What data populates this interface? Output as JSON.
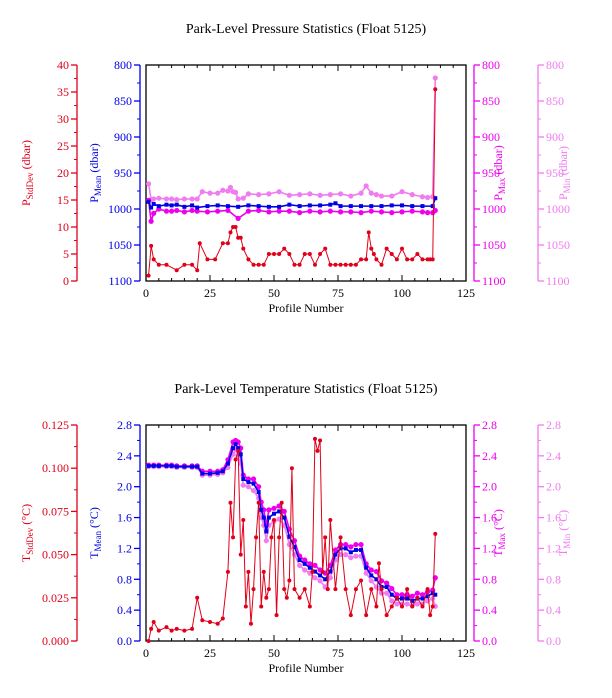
{
  "colors": {
    "stddev": "#e0001a",
    "mean": "#0000e6",
    "max": "#ee00ee",
    "min": "#f07cf0",
    "axis": "#000000"
  },
  "chart_data": [
    {
      "type": "line",
      "title": "Park-Level Pressure Statistics (Float 5125)",
      "xlabel": "Profile Number",
      "xlim": [
        0,
        125
      ],
      "x_ticks": [
        "0",
        "25",
        "50",
        "75",
        "100",
        "125"
      ],
      "axes": {
        "stddev": {
          "label_main": "P",
          "label_sub": "StdDev",
          "label_unit": " (dbar)",
          "lim": [
            0,
            40
          ],
          "ticks": [
            "0",
            "5",
            "10",
            "15",
            "20",
            "25",
            "30",
            "35",
            "40"
          ]
        },
        "mean": {
          "label_main": "P",
          "label_sub": "Mean",
          "label_unit": " (dbar)",
          "lim": [
            1100,
            800
          ],
          "ticks": [
            "1100",
            "1050",
            "1000",
            "950",
            "900",
            "850",
            "800"
          ]
        },
        "max": {
          "label_main": "P",
          "label_sub": "Max",
          "label_unit": " (dbar)",
          "lim": [
            1100,
            800
          ],
          "ticks": [
            "1100",
            "1050",
            "1000",
            "950",
            "900",
            "850",
            "800"
          ]
        },
        "min": {
          "label_main": "P",
          "label_sub": "Min",
          "label_unit": " (dbar)",
          "lim": [
            1100,
            800
          ],
          "ticks": [
            "1100",
            "1050",
            "1000",
            "950",
            "900",
            "850",
            "800"
          ]
        }
      },
      "series": [
        {
          "key": "stddev",
          "x": [
            1,
            2,
            3,
            5,
            8,
            12,
            15,
            18,
            20,
            21,
            24,
            27,
            30,
            32,
            33,
            34,
            35,
            36,
            37,
            38,
            40,
            42,
            44,
            46,
            48,
            50,
            52,
            54,
            56,
            58,
            60,
            62,
            64,
            66,
            68,
            70,
            72,
            74,
            76,
            78,
            80,
            82,
            84,
            86,
            87,
            88,
            89,
            90,
            92,
            94,
            96,
            98,
            100,
            102,
            104,
            106,
            108,
            110,
            111,
            112,
            113
          ],
          "values": [
            1,
            6.5,
            4,
            3,
            3,
            2,
            3,
            3,
            2,
            7,
            4,
            4,
            7,
            7,
            9,
            10,
            10,
            8,
            8,
            6,
            4,
            3,
            3,
            3,
            5,
            5,
            5,
            6,
            5,
            3,
            3,
            5,
            5,
            3,
            5,
            6,
            3,
            3,
            3,
            3,
            3,
            3,
            4,
            4,
            9,
            6,
            5,
            4,
            3,
            6,
            5,
            4,
            6,
            4,
            4,
            5,
            4,
            4,
            4,
            4,
            35.5
          ]
        },
        {
          "key": "mean",
          "x": [
            1,
            2,
            3,
            5,
            8,
            10,
            12,
            15,
            18,
            20,
            24,
            28,
            32,
            36,
            40,
            44,
            48,
            52,
            56,
            60,
            64,
            68,
            72,
            74,
            76,
            80,
            84,
            88,
            92,
            96,
            100,
            104,
            108,
            112,
            113
          ],
          "values": [
            990,
            998,
            993,
            996,
            994,
            995,
            994,
            997,
            995,
            998,
            996,
            995,
            996,
            997,
            995,
            996,
            997,
            997,
            994,
            996,
            995,
            995,
            994,
            992,
            996,
            996,
            996,
            996,
            996,
            995,
            995,
            996,
            996,
            996,
            985
          ]
        },
        {
          "key": "max",
          "x": [
            1,
            2,
            3,
            5,
            8,
            10,
            12,
            15,
            18,
            20,
            24,
            28,
            32,
            36,
            40,
            44,
            48,
            52,
            56,
            60,
            64,
            68,
            72,
            76,
            80,
            84,
            88,
            92,
            96,
            100,
            104,
            108,
            110,
            112,
            113
          ],
          "values": [
            988,
            1017,
            1006,
            1000,
            1003,
            1003,
            1002,
            1004,
            1002,
            1003,
            1004,
            1003,
            1002,
            1013,
            1003,
            1002,
            1004,
            1003,
            1003,
            1005,
            1003,
            1004,
            1003,
            1004,
            1004,
            1005,
            1003,
            1004,
            1005,
            1004,
            1003,
            1004,
            1005,
            1005,
            1002
          ]
        },
        {
          "key": "min",
          "x": [
            1,
            2,
            3,
            5,
            8,
            10,
            12,
            15,
            18,
            20,
            22,
            25,
            28,
            30,
            32,
            33,
            34,
            35,
            36,
            38,
            40,
            44,
            48,
            52,
            56,
            60,
            64,
            68,
            72,
            76,
            80,
            84,
            86,
            88,
            90,
            92,
            96,
            100,
            104,
            108,
            110,
            112,
            113
          ],
          "values": [
            965,
            987,
            986,
            985,
            986,
            986,
            987,
            986,
            986,
            986,
            976,
            978,
            978,
            974,
            975,
            970,
            976,
            977,
            986,
            985,
            979,
            980,
            979,
            976,
            981,
            980,
            979,
            981,
            980,
            979,
            982,
            978,
            968,
            978,
            980,
            982,
            982,
            976,
            980,
            983,
            984,
            983,
            818
          ]
        }
      ]
    },
    {
      "type": "line",
      "title": "Park-Level Temperature Statistics (Float 5125)",
      "xlabel": "Profile Number",
      "xlim": [
        0,
        125
      ],
      "x_ticks": [
        "0",
        "25",
        "50",
        "75",
        "100",
        "125"
      ],
      "axes": {
        "stddev": {
          "label_main": "T",
          "label_sub": "StdDev",
          "label_unit": " (°C)",
          "lim": [
            0,
            0.125
          ],
          "ticks": [
            "0.000",
            "0.025",
            "0.050",
            "0.075",
            "0.100",
            "0.125"
          ]
        },
        "mean": {
          "label_main": "T",
          "label_sub": "Mean",
          "label_unit": " (°C)",
          "lim": [
            0,
            2.8
          ],
          "ticks": [
            "0.0",
            "0.4",
            "0.8",
            "1.2",
            "1.6",
            "2.0",
            "2.4",
            "2.8"
          ]
        },
        "max": {
          "label_main": "T",
          "label_sub": "Max",
          "label_unit": " (°C)",
          "lim": [
            0,
            2.8
          ],
          "ticks": [
            "0.0",
            "0.4",
            "0.8",
            "1.2",
            "1.6",
            "2.0",
            "2.4",
            "2.8"
          ]
        },
        "min": {
          "label_main": "T",
          "label_sub": "Min",
          "label_unit": " (°C)",
          "lim": [
            0,
            2.8
          ],
          "ticks": [
            "0.0",
            "0.4",
            "0.8",
            "1.2",
            "1.6",
            "2.0",
            "2.4",
            "2.8"
          ]
        }
      },
      "series": [
        {
          "key": "stddev",
          "x": [
            1,
            2,
            3,
            5,
            8,
            10,
            12,
            15,
            18,
            20,
            22,
            25,
            28,
            30,
            32,
            33,
            34,
            35,
            36,
            37,
            38,
            39,
            40,
            41,
            42,
            43,
            44,
            45,
            46,
            47,
            48,
            49,
            50,
            51,
            52,
            53,
            54,
            55,
            56,
            57,
            58,
            60,
            62,
            64,
            65,
            66,
            67,
            68,
            69,
            70,
            71,
            72,
            74,
            76,
            78,
            80,
            82,
            84,
            86,
            88,
            90,
            91,
            92,
            94,
            96,
            98,
            100,
            102,
            104,
            106,
            108,
            110,
            111,
            112,
            113
          ],
          "values": [
            0,
            0.007,
            0.011,
            0.006,
            0.008,
            0.006,
            0.007,
            0.006,
            0.007,
            0.025,
            0.012,
            0.011,
            0.01,
            0.013,
            0.04,
            0.08,
            0.06,
            0.105,
            0.11,
            0.05,
            0.07,
            0.02,
            0.04,
            0.01,
            0.03,
            0.06,
            0.08,
            0.02,
            0.04,
            0.025,
            0.03,
            0.06,
            0.07,
            0.015,
            0.06,
            0.08,
            0.03,
            0.025,
            0.035,
            0.1,
            0.03,
            0.025,
            0.03,
            0.02,
            0.04,
            0.117,
            0.11,
            0.116,
            0.04,
            0.06,
            0.03,
            0.07,
            0.03,
            0.06,
            0.03,
            0.015,
            0.03,
            0.035,
            0.015,
            0.03,
            0.02,
            0.045,
            0.03,
            0.015,
            0.02,
            0.025,
            0.02,
            0.03,
            0.02,
            0.025,
            0.02,
            0.03,
            0.015,
            0.02,
            0.062
          ]
        },
        {
          "key": "mean",
          "x": [
            1,
            3,
            5,
            8,
            10,
            12,
            15,
            18,
            20,
            22,
            25,
            28,
            30,
            32,
            34,
            35,
            36,
            37,
            38,
            40,
            42,
            44,
            45,
            46,
            47,
            48,
            50,
            52,
            54,
            56,
            58,
            60,
            62,
            64,
            66,
            68,
            70,
            72,
            74,
            76,
            78,
            80,
            82,
            84,
            86,
            88,
            90,
            92,
            94,
            96,
            98,
            100,
            102,
            104,
            106,
            108,
            110,
            112,
            113
          ],
          "values": [
            2.27,
            2.27,
            2.27,
            2.27,
            2.27,
            2.26,
            2.26,
            2.26,
            2.26,
            2.17,
            2.17,
            2.18,
            2.2,
            2.3,
            2.5,
            2.55,
            2.5,
            2.42,
            2.1,
            2.06,
            2.04,
            1.93,
            1.7,
            1.6,
            1.42,
            1.6,
            1.65,
            1.68,
            1.6,
            1.35,
            1.22,
            1.05,
            1.0,
            0.95,
            0.9,
            0.85,
            0.8,
            0.9,
            1.12,
            1.2,
            1.2,
            1.15,
            1.18,
            1.18,
            0.95,
            0.85,
            0.8,
            0.7,
            0.7,
            0.6,
            0.55,
            0.55,
            0.55,
            0.52,
            0.55,
            0.55,
            0.58,
            0.62,
            0.6
          ]
        },
        {
          "key": "max",
          "x": [
            1,
            3,
            5,
            8,
            10,
            12,
            15,
            18,
            20,
            22,
            25,
            28,
            30,
            32,
            34,
            35,
            36,
            37,
            38,
            40,
            42,
            44,
            45,
            46,
            47,
            48,
            50,
            52,
            54,
            56,
            58,
            60,
            62,
            64,
            66,
            68,
            70,
            72,
            74,
            76,
            78,
            80,
            82,
            84,
            86,
            88,
            90,
            92,
            94,
            96,
            98,
            100,
            102,
            104,
            106,
            108,
            110,
            112,
            113
          ],
          "values": [
            2.28,
            2.28,
            2.28,
            2.28,
            2.28,
            2.27,
            2.27,
            2.27,
            2.27,
            2.2,
            2.2,
            2.2,
            2.22,
            2.35,
            2.58,
            2.6,
            2.58,
            2.5,
            2.15,
            2.1,
            2.1,
            2.0,
            1.8,
            1.7,
            1.5,
            1.7,
            1.72,
            1.75,
            1.68,
            1.45,
            1.3,
            1.1,
            1.05,
            1.0,
            0.98,
            0.92,
            0.88,
            0.98,
            1.18,
            1.25,
            1.25,
            1.22,
            1.25,
            1.25,
            1.0,
            0.92,
            0.9,
            0.78,
            0.75,
            0.68,
            0.6,
            0.6,
            0.6,
            0.58,
            0.62,
            0.6,
            0.64,
            0.66,
            0.82
          ]
        },
        {
          "key": "min",
          "x": [
            1,
            3,
            5,
            8,
            10,
            12,
            15,
            18,
            20,
            22,
            25,
            28,
            30,
            32,
            34,
            35,
            36,
            37,
            38,
            40,
            42,
            44,
            45,
            46,
            47,
            48,
            50,
            52,
            54,
            56,
            58,
            60,
            62,
            64,
            66,
            68,
            70,
            72,
            74,
            76,
            78,
            80,
            82,
            84,
            86,
            88,
            90,
            92,
            94,
            96,
            98,
            100,
            102,
            104,
            106,
            108,
            110,
            112,
            113
          ],
          "values": [
            2.26,
            2.26,
            2.26,
            2.26,
            2.26,
            2.25,
            2.25,
            2.25,
            2.25,
            2.15,
            2.15,
            2.16,
            2.18,
            2.25,
            2.42,
            2.48,
            2.4,
            2.3,
            2.02,
            2.0,
            1.95,
            1.85,
            1.6,
            1.5,
            1.3,
            1.5,
            1.55,
            1.58,
            1.5,
            1.25,
            1.12,
            0.98,
            0.92,
            0.88,
            0.82,
            0.78,
            0.7,
            0.82,
            1.05,
            1.12,
            1.12,
            1.08,
            1.1,
            1.1,
            0.88,
            0.78,
            0.7,
            0.62,
            0.62,
            0.52,
            0.48,
            0.48,
            0.48,
            0.46,
            0.48,
            0.48,
            0.52,
            0.55,
            0.45
          ]
        }
      ]
    }
  ]
}
